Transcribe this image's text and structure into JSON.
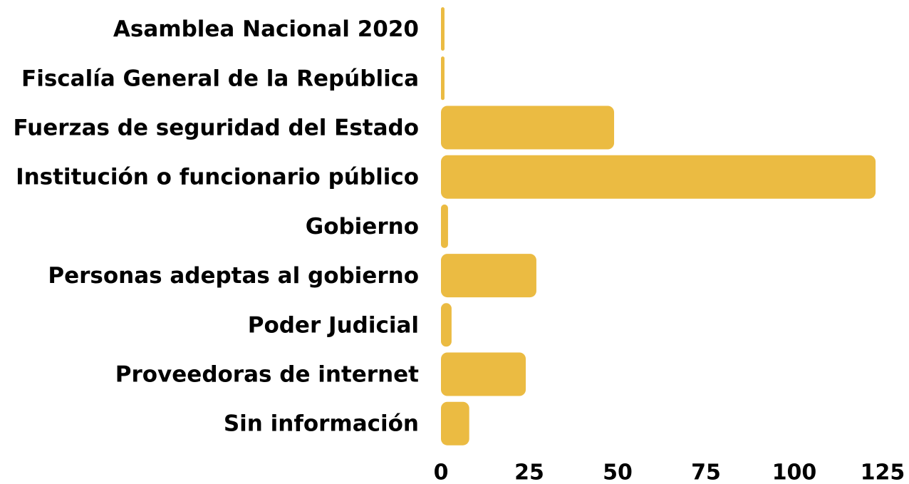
{
  "chart_data": {
    "type": "bar",
    "orientation": "horizontal",
    "categories": [
      "Asamblea Nacional 2020",
      "Fiscalía General de la República",
      "Fuerzas de seguridad del Estado",
      "Institución o funcionario público",
      "Gobierno",
      "Personas adeptas al gobierno",
      "Poder Judicial",
      "Proveedoras de internet",
      "Sin información"
    ],
    "values": [
      1,
      1,
      49,
      123,
      2,
      27,
      3,
      24,
      8
    ],
    "color": "#ebbb42",
    "xlim": [
      0,
      125
    ],
    "xticks": [
      0,
      25,
      50,
      75,
      100,
      125
    ],
    "grid": false
  }
}
